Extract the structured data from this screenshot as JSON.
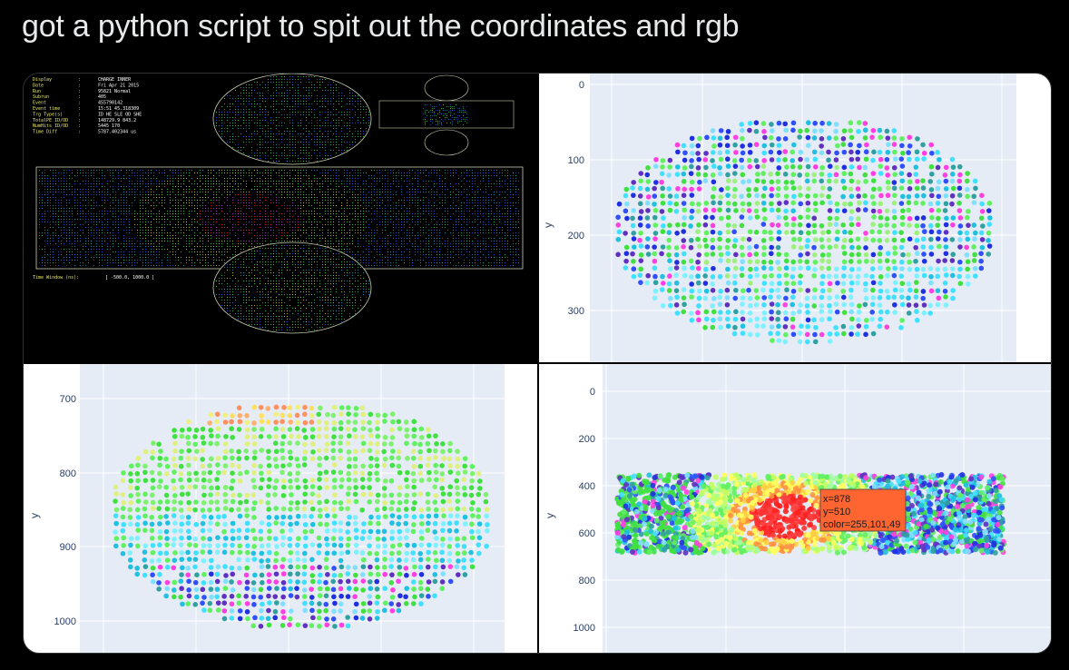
{
  "post": {
    "text": "got a python script to spit out the coordinates and rgb"
  },
  "event_display": {
    "labels": [
      "Display",
      "Date",
      "Run",
      "Subrun",
      "Event",
      "Event time",
      "Trg Type(s)",
      "TotalPE ID/OD",
      "NumHits ID/OD",
      "Time Diff"
    ],
    "values": [
      "CHARGE INNER",
      "Fri Apr 21 2015",
      "95821 Normal",
      "405",
      "455790142",
      "15:51 45.318309",
      "ID HE SLE OD SHE",
      "148729.9 843.2",
      "5445 170",
      "5787.402344 us"
    ],
    "time_window_label": "Time Window (ns):",
    "time_window_value": "[ -500.0, 1000.0 ]"
  },
  "plot_top_right": {
    "ylabel": "y",
    "yticks": [
      "0",
      "100",
      "200",
      "300"
    ]
  },
  "plot_bottom_left": {
    "ylabel": "y",
    "yticks": [
      "700",
      "800",
      "900",
      "1000"
    ]
  },
  "plot_bottom_right": {
    "ylabel": "y",
    "yticks": [
      "0",
      "200",
      "400",
      "600",
      "800",
      "1000"
    ],
    "hover": {
      "x": "x=878",
      "y": "y=510",
      "color": "color=255,101,49",
      "bg": "#ff6531"
    }
  },
  "colors": {
    "plot_bg": "#e5ecf6",
    "tick_text": "#2a3f5f"
  }
}
